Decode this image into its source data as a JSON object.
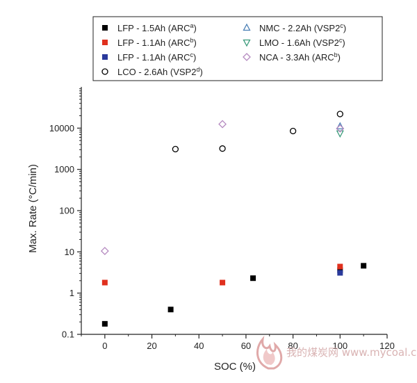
{
  "chart_data": {
    "type": "scatter",
    "xlabel": "SOC (%)",
    "ylabel": "Max. Rate (°C/min)",
    "xlim": [
      -10,
      120
    ],
    "ylim": [
      0.1,
      100000
    ],
    "yscale": "log",
    "x_ticks": [
      0,
      20,
      40,
      60,
      80,
      100,
      120
    ],
    "x_tick_labels": [
      "0",
      "20",
      "40",
      "60",
      "80",
      "100",
      "120"
    ],
    "y_ticks": [
      0.1,
      1,
      10,
      100,
      1000,
      10000
    ],
    "y_tick_labels": [
      "0.1",
      "1",
      "10",
      "100",
      "1000",
      "10000"
    ],
    "legend_position": "top",
    "series": [
      {
        "label": "LFP - 1.5Ah (ARC",
        "sup": "a",
        "label_end": ")",
        "marker": "square",
        "filled": true,
        "color": "#000000",
        "x": [
          0,
          28,
          63,
          100,
          110
        ],
        "y": [
          0.18,
          0.4,
          2.3,
          3.6,
          4.6
        ]
      },
      {
        "label": "LFP - 1.1Ah (ARC",
        "sup": "b",
        "label_end": ")",
        "marker": "square",
        "filled": true,
        "color": "#e0301e",
        "x": [
          0,
          50,
          100
        ],
        "y": [
          1.8,
          1.8,
          4.4
        ]
      },
      {
        "label": "LFP - 1.1Ah (ARC",
        "sup": "c",
        "label_end": ")",
        "marker": "square",
        "filled": true,
        "color": "#2a3a9c",
        "x": [
          100
        ],
        "y": [
          3.1
        ]
      },
      {
        "label": "LCO - 2.6Ah (VSP2",
        "sup": "d",
        "label_end": ")",
        "marker": "circle",
        "filled": false,
        "color": "#000000",
        "x": [
          30,
          50,
          80,
          100
        ],
        "y": [
          3100,
          3200,
          8500,
          22000
        ]
      },
      {
        "label": "NMC - 2.2Ah (VSP2",
        "sup": "c",
        "label_end": ")",
        "marker": "triangle-up",
        "filled": false,
        "color": "#4a7fb5",
        "x": [
          100
        ],
        "y": [
          11000
        ]
      },
      {
        "label": "LMO - 1.6Ah (VSP2",
        "sup": "c",
        "label_end": ")",
        "marker": "triangle-down",
        "filled": false,
        "color": "#3a9a7a",
        "x": [
          100
        ],
        "y": [
          7500
        ]
      },
      {
        "label": "NCA - 3.3Ah (ARC",
        "sup": "b",
        "label_end": ")",
        "marker": "diamond",
        "filled": false,
        "color": "#b58ac0",
        "x": [
          0,
          50,
          100
        ],
        "y": [
          10.5,
          12500,
          9800
        ]
      }
    ]
  },
  "watermark": {
    "text": "我的煤炭网 www.mycoal.cn",
    "logo_icon": "flame-logo-icon",
    "color": "#d9b3b3"
  }
}
